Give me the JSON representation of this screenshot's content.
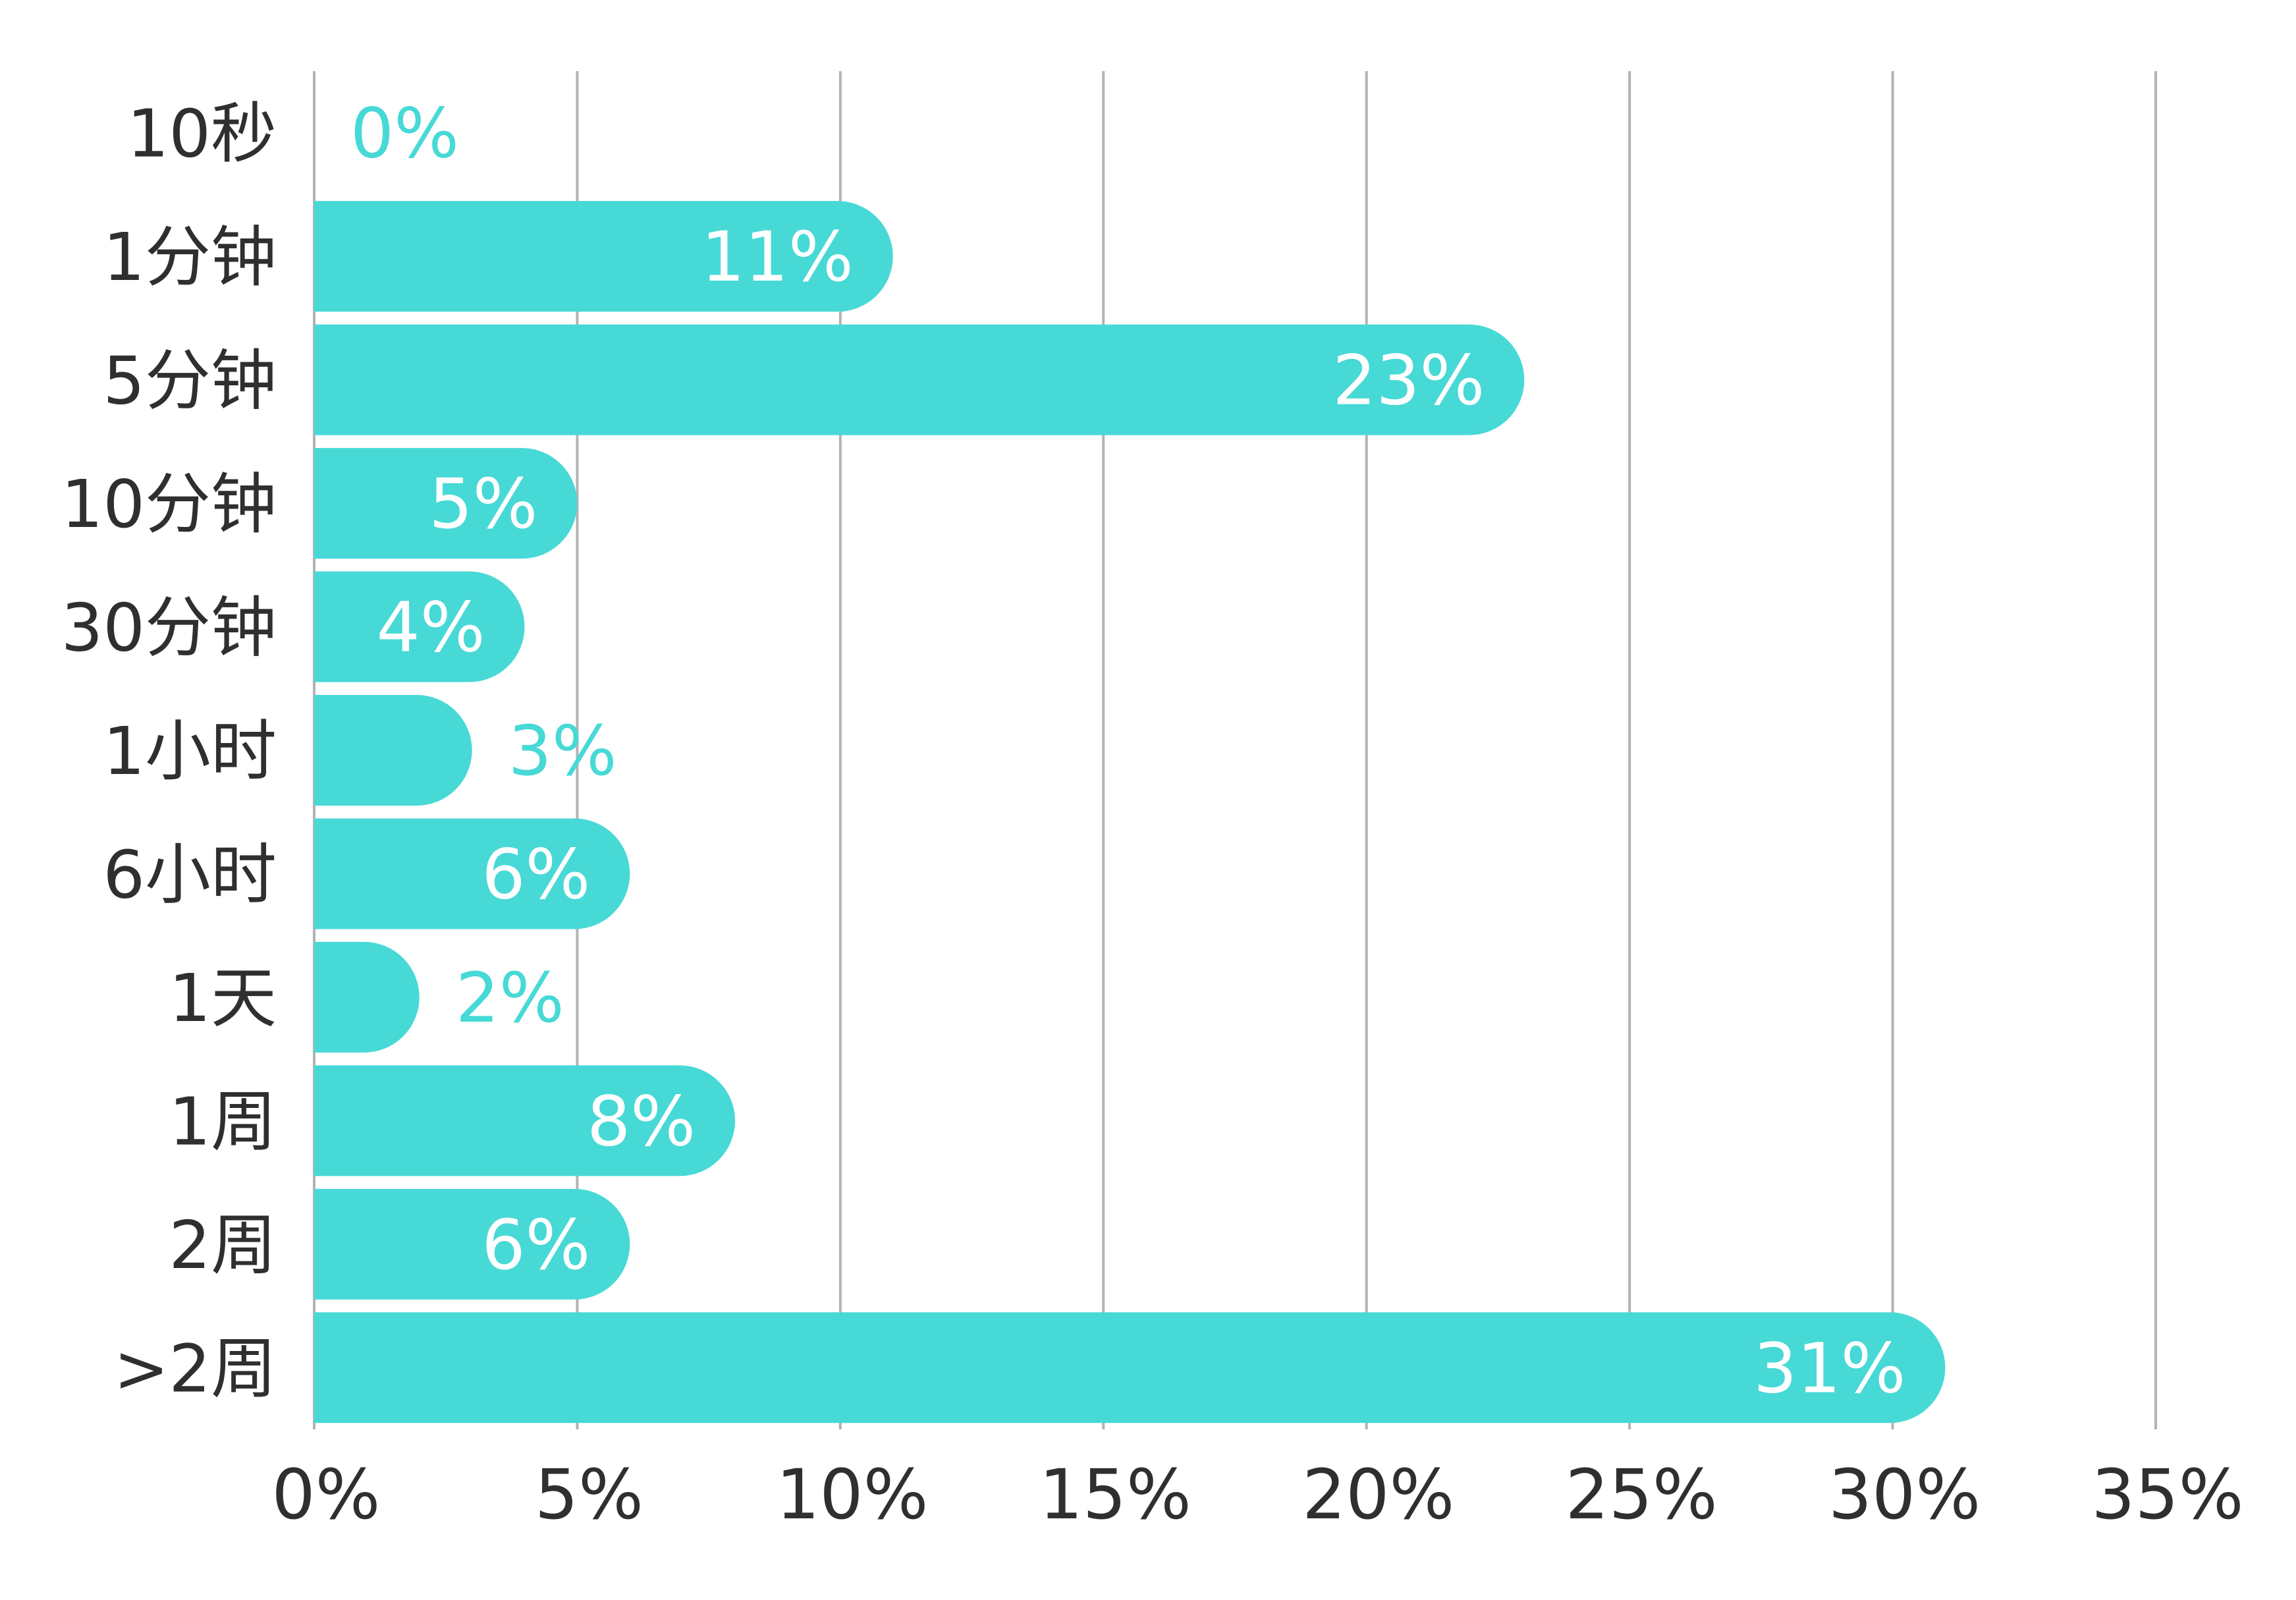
{
  "chart_data": {
    "type": "bar",
    "orientation": "horizontal",
    "categories": [
      "10秒",
      "1分钟",
      "5分钟",
      "10分钟",
      "30分钟",
      "1小时",
      "6小时",
      "1天",
      "1周",
      "2周",
      ">2周"
    ],
    "values": [
      0,
      11,
      23,
      5,
      4,
      3,
      6,
      2,
      8,
      6,
      31
    ],
    "value_labels": [
      "0%",
      "11%",
      "23%",
      "5%",
      "4%",
      "3%",
      "6%",
      "2%",
      "8%",
      "6%",
      "31%"
    ],
    "x_ticks": [
      "0%",
      "5%",
      "10%",
      "15%",
      "20%",
      "25%",
      "30%",
      "35%"
    ],
    "xlim": [
      0,
      35
    ],
    "grid": true,
    "title": "",
    "xlabel": "",
    "ylabel": "",
    "colors": {
      "bar": "#47d9d6",
      "label_inside": "#ffffff",
      "label_outside": "#47d9d6",
      "grid": "#b3b3b3",
      "text": "#2f2f2f"
    }
  }
}
